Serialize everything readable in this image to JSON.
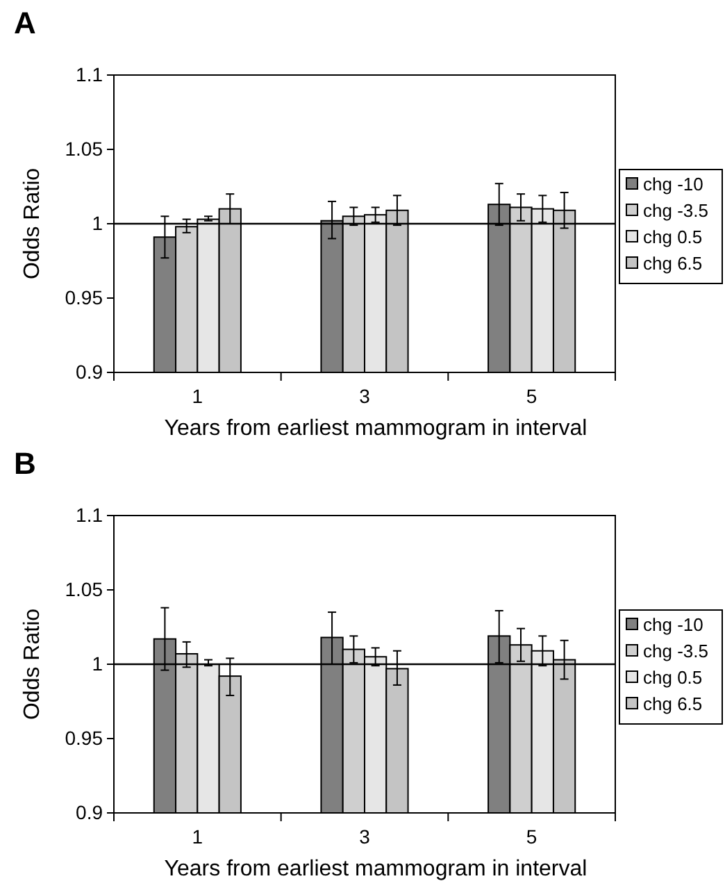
{
  "chart_data": [
    {
      "type": "bar",
      "title": "A",
      "xlabel": "Years from earliest mammogram in interval",
      "ylabel": "Odds Ratio",
      "categories": [
        "1",
        "3",
        "5"
      ],
      "ylim": [
        0.9,
        1.1
      ],
      "yticks": [
        0.9,
        0.95,
        1,
        1.05,
        1.1
      ],
      "grid": false,
      "legend": "right",
      "ref_lines": [
        {
          "axis": "y",
          "value": 1
        }
      ],
      "series": [
        {
          "name": "chg -10",
          "color": "#808080",
          "values": [
            0.991,
            1.002,
            1.013
          ],
          "errors": [
            [
              0.977,
              1.005
            ],
            [
              0.99,
              1.015
            ],
            [
              0.999,
              1.027
            ]
          ]
        },
        {
          "name": "chg -3.5",
          "color": "#cfcfcf",
          "values": [
            0.998,
            1.005,
            1.011
          ],
          "errors": [
            [
              0.994,
              1.003
            ],
            [
              0.999,
              1.011
            ],
            [
              1.002,
              1.02
            ]
          ]
        },
        {
          "name": "chg 0.5",
          "color": "#e6e6e6",
          "values": [
            1.003,
            1.006,
            1.01
          ],
          "errors": [
            [
              1.002,
              1.005
            ],
            [
              1.001,
              1.011
            ],
            [
              1.001,
              1.019
            ]
          ]
        },
        {
          "name": "chg 6.5",
          "color": "#c4c4c4",
          "values": [
            1.01,
            1.009,
            1.009
          ],
          "errors": [
            [
              1.0,
              1.02
            ],
            [
              0.999,
              1.019
            ],
            [
              0.997,
              1.021
            ]
          ]
        }
      ]
    },
    {
      "type": "bar",
      "title": "B",
      "xlabel": "Years from earliest mammogram in interval",
      "ylabel": "Odds Ratio",
      "categories": [
        "1",
        "3",
        "5"
      ],
      "ylim": [
        0.9,
        1.1
      ],
      "yticks": [
        0.9,
        0.95,
        1,
        1.05,
        1.1
      ],
      "grid": false,
      "legend": "right",
      "ref_lines": [
        {
          "axis": "y",
          "value": 1
        }
      ],
      "series": [
        {
          "name": "chg -10",
          "color": "#808080",
          "values": [
            1.017,
            1.018,
            1.019
          ],
          "errors": [
            [
              0.996,
              1.038
            ],
            [
              1.0,
              1.035
            ],
            [
              1.001,
              1.036
            ]
          ]
        },
        {
          "name": "chg -3.5",
          "color": "#cfcfcf",
          "values": [
            1.007,
            1.01,
            1.013
          ],
          "errors": [
            [
              0.998,
              1.015
            ],
            [
              1.001,
              1.019
            ],
            [
              1.002,
              1.024
            ]
          ]
        },
        {
          "name": "chg 0.5",
          "color": "#e6e6e6",
          "values": [
            1.0,
            1.005,
            1.009
          ],
          "errors": [
            [
              0.999,
              1.003
            ],
            [
              0.999,
              1.011
            ],
            [
              0.999,
              1.019
            ]
          ]
        },
        {
          "name": "chg 6.5",
          "color": "#c4c4c4",
          "values": [
            0.992,
            0.997,
            1.003
          ],
          "errors": [
            [
              0.979,
              1.004
            ],
            [
              0.986,
              1.009
            ],
            [
              0.99,
              1.016
            ]
          ]
        }
      ]
    }
  ]
}
